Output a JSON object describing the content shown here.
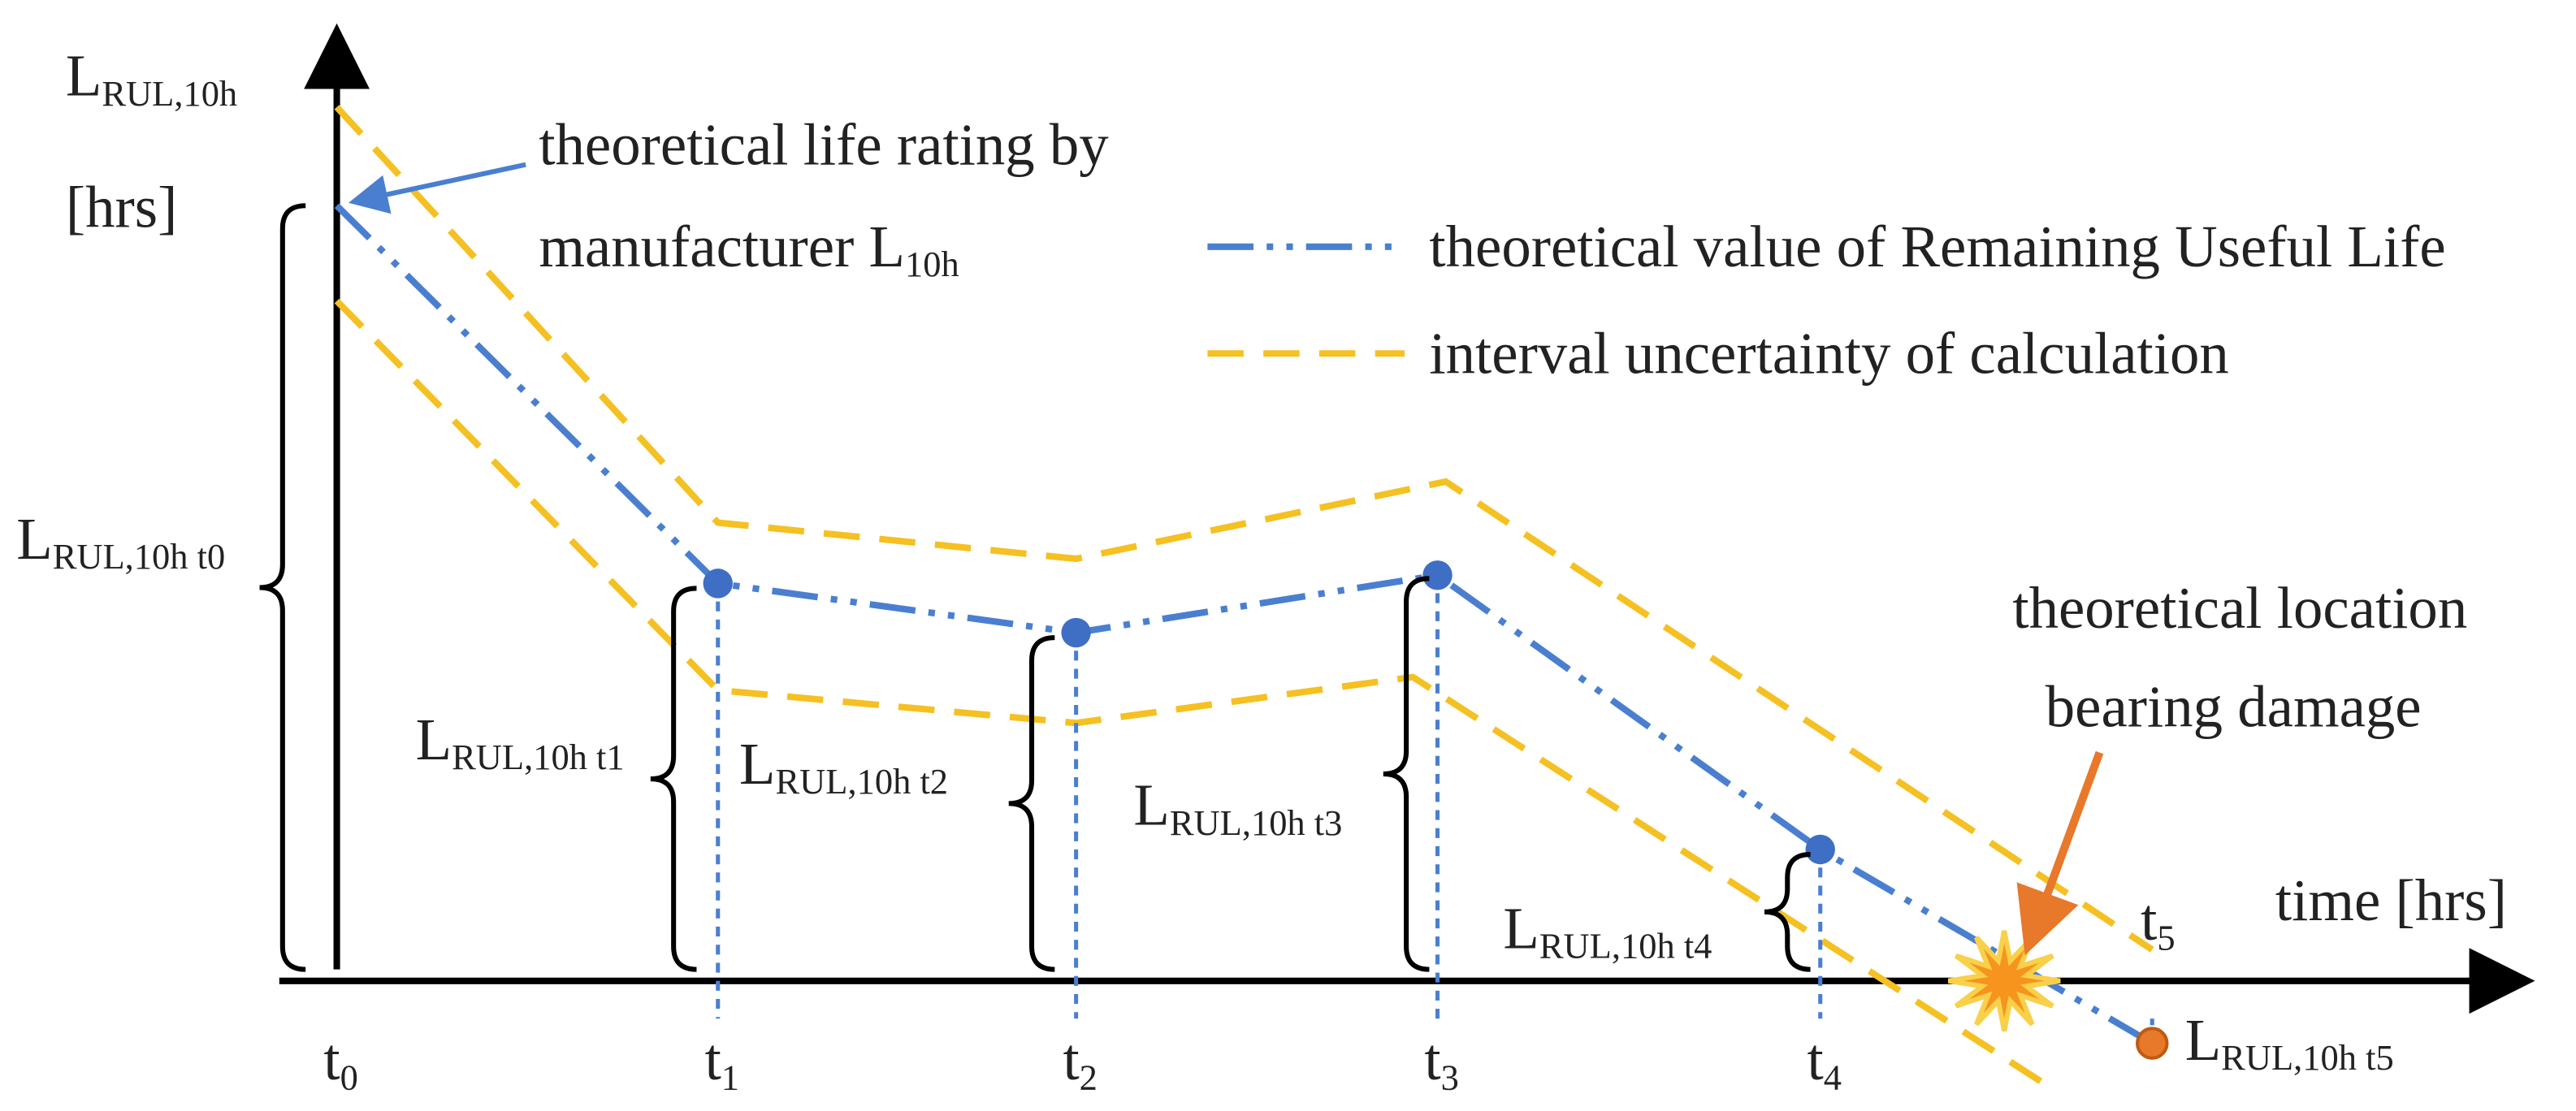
{
  "axes": {
    "y_label": {
      "main": "L",
      "sub": "RUL,10h"
    },
    "y_unit": "[hrs]",
    "x_label": "time [hrs]"
  },
  "ticks": [
    {
      "main": "t",
      "sub": "0"
    },
    {
      "main": "t",
      "sub": "1"
    },
    {
      "main": "t",
      "sub": "2"
    },
    {
      "main": "t",
      "sub": "3"
    },
    {
      "main": "t",
      "sub": "4"
    },
    {
      "main": "t",
      "sub": "5"
    }
  ],
  "life_rating": {
    "line1": "theoretical life rating by",
    "line2": {
      "main": "manufacturer L",
      "sub": "10h"
    }
  },
  "legend": [
    {
      "label": "theoretical value of Remaining Useful Life"
    },
    {
      "label": "interval uncertainty of calculation"
    }
  ],
  "rul_labels": [
    {
      "main": "L",
      "sub": "RUL,10h t0"
    },
    {
      "main": "L",
      "sub": "RUL,10h t1"
    },
    {
      "main": "L",
      "sub": "RUL,10h t2"
    },
    {
      "main": "L",
      "sub": "RUL,10h t3"
    },
    {
      "main": "L",
      "sub": "RUL,10h t4"
    },
    {
      "main": "L",
      "sub": "RUL,10h t5"
    }
  ],
  "damage_label": {
    "line1": "theoretical location",
    "line2": "bearing damage"
  }
}
